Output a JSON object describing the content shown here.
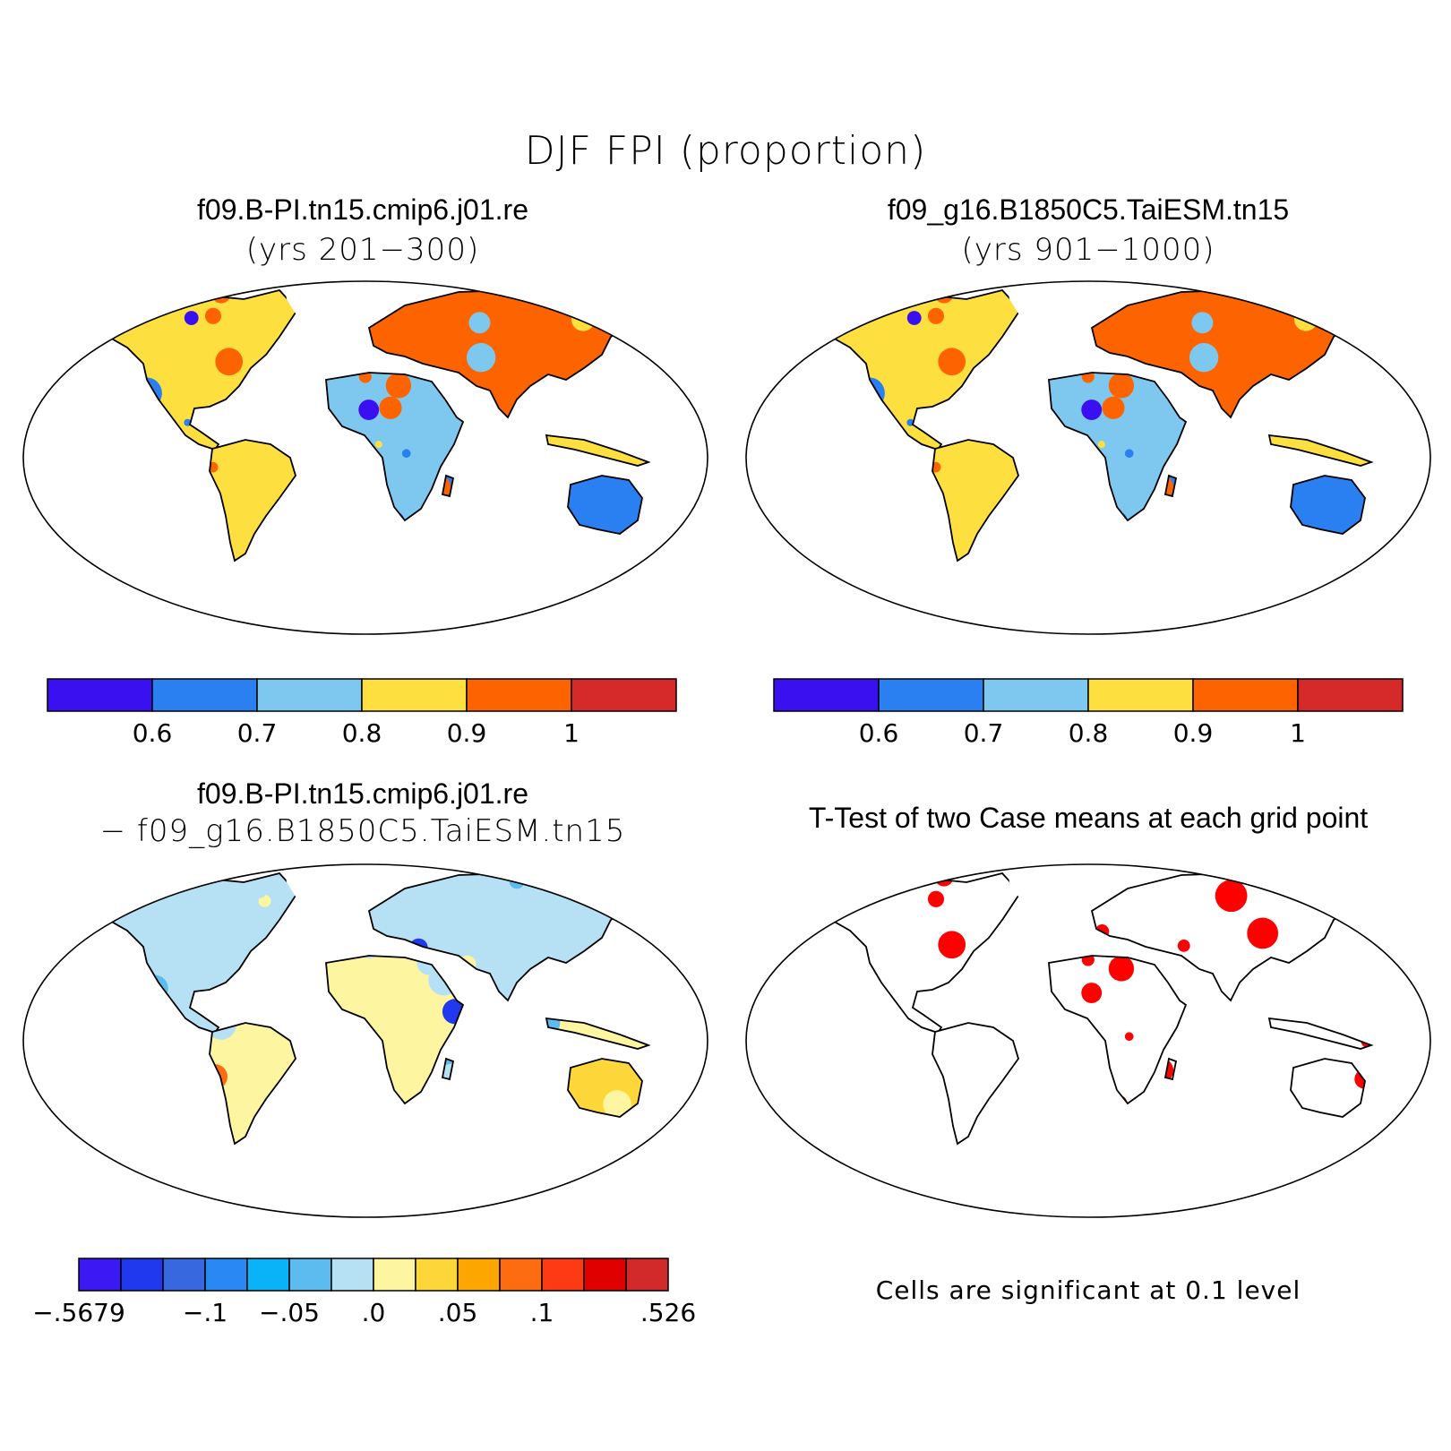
{
  "title": "DJF FPI (proportion)",
  "panels": [
    {
      "id": "top-left",
      "title": "f09.B-PI.tn15.cmip6.j01.re",
      "subtitle": "(yrs 201−300)"
    },
    {
      "id": "top-right",
      "title": "f09_g16.B1850C5.TaiESM.tn15",
      "subtitle": "(yrs 901−1000)"
    },
    {
      "id": "bottom-left",
      "title": "f09.B-PI.tn15.cmip6.j01.re",
      "subtitle": "− f09_g16.B1850C5.TaiESM.tn15"
    },
    {
      "id": "bottom-right",
      "title": "T-Test of two Case means at each grid point",
      "subtitle": ""
    }
  ],
  "colorbar_abs": {
    "colors": [
      "#3a10f0",
      "#2a80f0",
      "#7ec8f0",
      "#fde040",
      "#fd6400",
      "#d62a2a"
    ],
    "labels": [
      "0.6",
      "0.7",
      "0.8",
      "0.9",
      "1"
    ]
  },
  "colorbar_diff": {
    "colors": [
      "#3c18f2",
      "#2038ee",
      "#3868e0",
      "#2a88f4",
      "#0ab2f8",
      "#5cbcf0",
      "#b6e0f4",
      "#fdf5a0",
      "#fdd63a",
      "#fda600",
      "#fd6c10",
      "#fd3a14",
      "#e00000",
      "#d22a2a"
    ],
    "labels": [
      "−.5679",
      "−.1",
      "−.05",
      ".0",
      ".05",
      ".1",
      ".526"
    ]
  },
  "significance_note": "Cells are significant at 0.1 level",
  "significance_color": "#ff0000",
  "chart_data": {
    "type": "heatmap",
    "variable": "DJF FPI",
    "units": "proportion",
    "abs_scale": {
      "levels": [
        0.6,
        0.7,
        0.8,
        0.9,
        1.0
      ]
    },
    "diff_scale": {
      "min": -0.5679,
      "max": 0.526,
      "levels": [
        -0.1,
        -0.05,
        0.0,
        0.05,
        0.1
      ]
    },
    "significance_level": 0.1
  }
}
